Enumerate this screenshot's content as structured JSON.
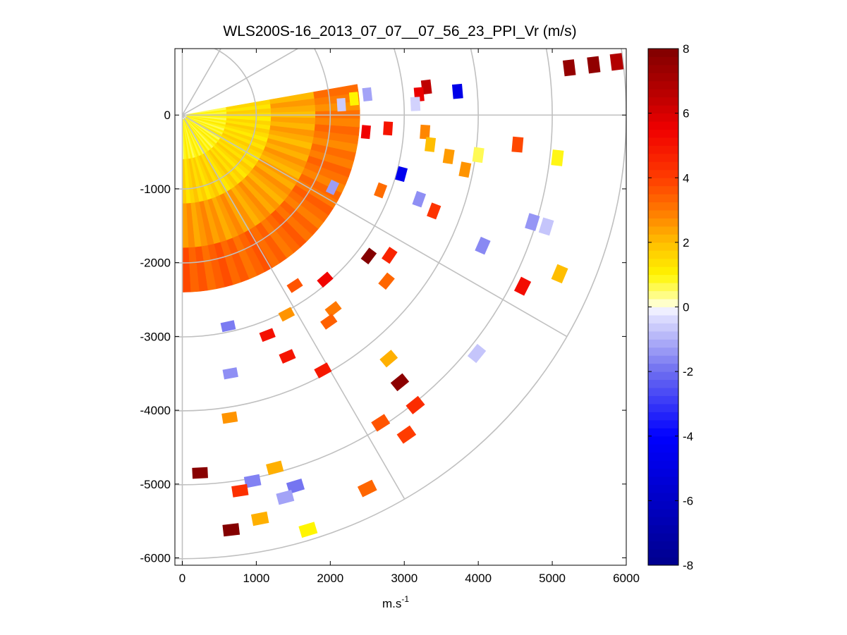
{
  "chart_data": {
    "type": "heatmap",
    "subtype": "polar-ppi-scan",
    "title": "WLS200S-16_2013_07_07__07_56_23_PPI_Vr (m/s)",
    "xlabel": "m.s",
    "xlabel_superscript": "-1",
    "ylabel": "",
    "xlim": [
      -100,
      6000
    ],
    "ylim": [
      -6100,
      900
    ],
    "xticks": [
      0,
      1000,
      2000,
      3000,
      4000,
      5000,
      6000
    ],
    "xtick_labels": [
      "0",
      "1000",
      "2000",
      "3000",
      "4000",
      "5000",
      "6000"
    ],
    "yticks": [
      0,
      -1000,
      -2000,
      -3000,
      -4000,
      -5000,
      -6000
    ],
    "ytick_labels": [
      "0",
      "-1000",
      "-2000",
      "-3000",
      "-4000",
      "-5000",
      "-6000"
    ],
    "range_rings_m": [
      1000,
      2000,
      3000,
      4000,
      5000,
      6000
    ],
    "radial_spokes_deg": [
      60,
      30,
      0,
      -30,
      -60
    ],
    "colorbar": {
      "min": -8,
      "max": 8,
      "ticks": [
        8,
        6,
        4,
        2,
        0,
        -2,
        -4,
        -6,
        -8
      ],
      "tick_labels": [
        "8",
        "6",
        "4",
        "2",
        "0",
        "-2",
        "-4",
        "-6",
        "-8"
      ]
    },
    "dense_region": {
      "description_angles_deg": [
        -90,
        10
      ],
      "description_max_range_m": 2400,
      "ring_sectors": [
        {
          "r0": 60,
          "r1": 600,
          "v": 0.9
        },
        {
          "r0": 600,
          "r1": 1200,
          "v": 1.4
        },
        {
          "r0": 1200,
          "r1": 1800,
          "v": 2.2
        },
        {
          "r0": 1800,
          "r1": 2400,
          "v": 2.9
        }
      ]
    },
    "points": [
      {
        "x": 5560,
        "y": 680,
        "v": 7.6
      },
      {
        "x": 5230,
        "y": 640,
        "v": 7.5
      },
      {
        "x": 5870,
        "y": 720,
        "v": 6.8
      },
      {
        "x": 3300,
        "y": 380,
        "v": 6.5
      },
      {
        "x": 3200,
        "y": 280,
        "v": 5.6
      },
      {
        "x": 3720,
        "y": 320,
        "v": -4.8
      },
      {
        "x": 2500,
        "y": 280,
        "v": -1.2
      },
      {
        "x": 2320,
        "y": 220,
        "v": 1.0
      },
      {
        "x": 2150,
        "y": 140,
        "v": -0.6
      },
      {
        "x": 3150,
        "y": 150,
        "v": -0.5
      },
      {
        "x": 2480,
        "y": -230,
        "v": 5.5
      },
      {
        "x": 2780,
        "y": -180,
        "v": 5.0
      },
      {
        "x": 3280,
        "y": -230,
        "v": 2.8
      },
      {
        "x": 3350,
        "y": -400,
        "v": 2.0
      },
      {
        "x": 3600,
        "y": -560,
        "v": 2.5
      },
      {
        "x": 3820,
        "y": -740,
        "v": 2.6
      },
      {
        "x": 4000,
        "y": -540,
        "v": 0.6
      },
      {
        "x": 4530,
        "y": -400,
        "v": 3.8
      },
      {
        "x": 5070,
        "y": -580,
        "v": 0.9
      },
      {
        "x": 2960,
        "y": -800,
        "v": -4.6
      },
      {
        "x": 2680,
        "y": -1020,
        "v": 3.2
      },
      {
        "x": 3200,
        "y": -1140,
        "v": -1.5
      },
      {
        "x": 3400,
        "y": -1300,
        "v": 4.2
      },
      {
        "x": 2030,
        "y": -980,
        "v": -1.3
      },
      {
        "x": 4730,
        "y": -1450,
        "v": -1.4
      },
      {
        "x": 4920,
        "y": -1510,
        "v": -0.7
      },
      {
        "x": 4060,
        "y": -1770,
        "v": -1.6
      },
      {
        "x": 2800,
        "y": -1900,
        "v": 4.6
      },
      {
        "x": 2520,
        "y": -1910,
        "v": 7.9
      },
      {
        "x": 5100,
        "y": -2150,
        "v": 2.0
      },
      {
        "x": 4600,
        "y": -2320,
        "v": 5.2
      },
      {
        "x": 2760,
        "y": -2250,
        "v": 3.3
      },
      {
        "x": 1930,
        "y": -2230,
        "v": 5.4
      },
      {
        "x": 1520,
        "y": -2310,
        "v": 3.6
      },
      {
        "x": 2040,
        "y": -2630,
        "v": 3.0
      },
      {
        "x": 1980,
        "y": -2800,
        "v": 3.4
      },
      {
        "x": 1410,
        "y": -2700,
        "v": 2.6
      },
      {
        "x": 1150,
        "y": -2980,
        "v": 5.1
      },
      {
        "x": 620,
        "y": -2860,
        "v": -1.8
      },
      {
        "x": 3980,
        "y": -3230,
        "v": -0.7
      },
      {
        "x": 2790,
        "y": -3300,
        "v": 2.2
      },
      {
        "x": 1420,
        "y": -3270,
        "v": 5.0
      },
      {
        "x": 1900,
        "y": -3460,
        "v": 4.9
      },
      {
        "x": 650,
        "y": -3500,
        "v": -1.5
      },
      {
        "x": 2940,
        "y": -3620,
        "v": 7.7
      },
      {
        "x": 3150,
        "y": -3930,
        "v": 4.4
      },
      {
        "x": 2680,
        "y": -4170,
        "v": 3.6
      },
      {
        "x": 3030,
        "y": -4330,
        "v": 4.0
      },
      {
        "x": 640,
        "y": -4100,
        "v": 2.6
      },
      {
        "x": 1250,
        "y": -4780,
        "v": 2.2
      },
      {
        "x": 240,
        "y": -4850,
        "v": 7.8
      },
      {
        "x": 950,
        "y": -4960,
        "v": -1.7
      },
      {
        "x": 780,
        "y": -5090,
        "v": 4.3
      },
      {
        "x": 1530,
        "y": -5030,
        "v": -1.9
      },
      {
        "x": 1390,
        "y": -5180,
        "v": -1.2
      },
      {
        "x": 2500,
        "y": -5060,
        "v": 3.3
      },
      {
        "x": 1050,
        "y": -5470,
        "v": 2.2
      },
      {
        "x": 1700,
        "y": -5620,
        "v": 1.0
      },
      {
        "x": 660,
        "y": -5620,
        "v": 7.9
      }
    ]
  }
}
